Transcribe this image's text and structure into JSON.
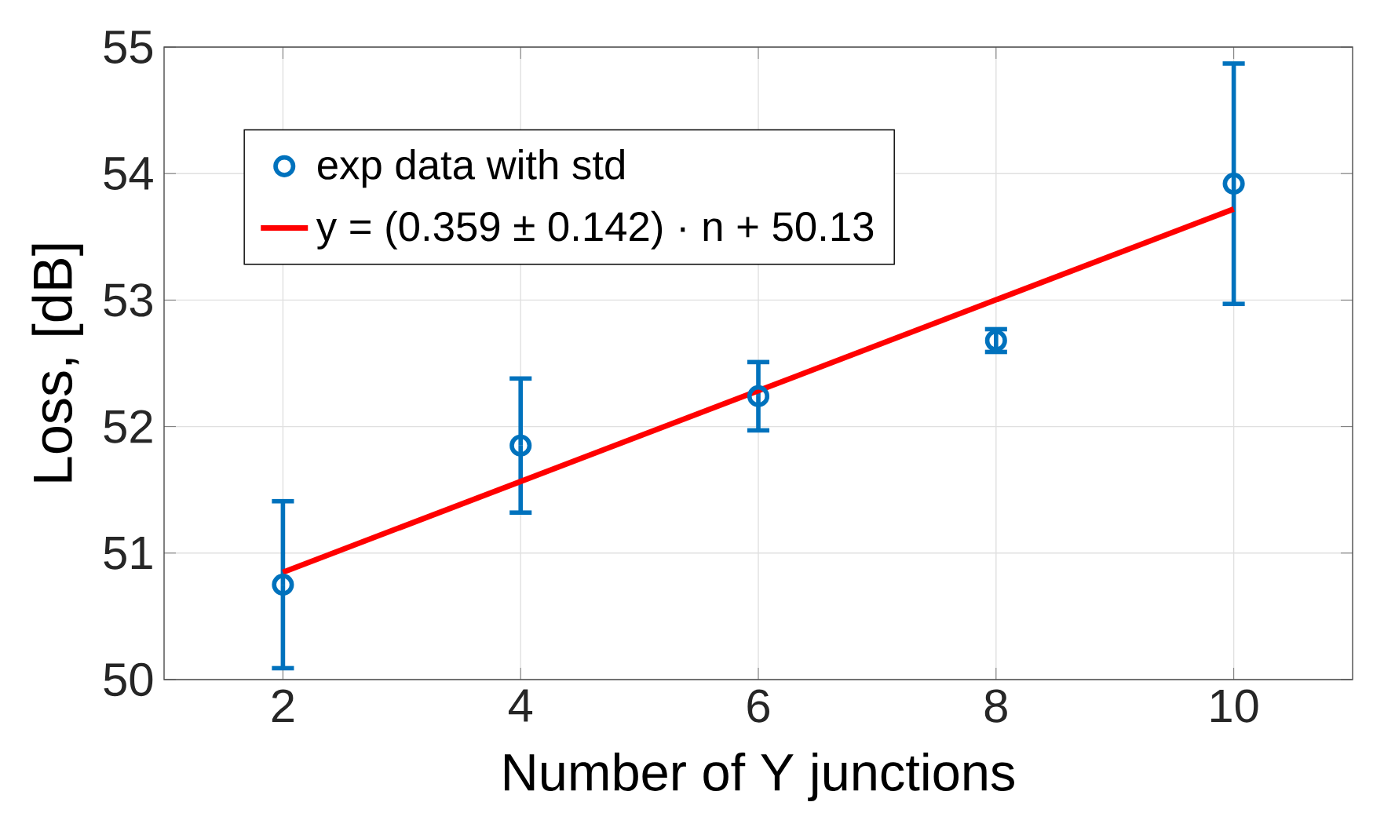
{
  "chart_data": {
    "type": "scatter",
    "xlabel": "Number of Y junctions",
    "ylabel": "Loss, [dB]",
    "xlim": [
      1,
      11
    ],
    "xticks": [
      2,
      4,
      6,
      8,
      10
    ],
    "ylim": [
      50,
      55
    ],
    "yticks": [
      50,
      51,
      52,
      53,
      54,
      55
    ],
    "grid": true,
    "legend": "top left",
    "series": [
      {
        "name": "exp data with std",
        "color": "#0072bd",
        "marker": "circle",
        "x": [
          2,
          4,
          6,
          8,
          10
        ],
        "values": [
          50.75,
          51.85,
          52.24,
          52.68,
          53.92
        ],
        "errors": [
          0.66,
          0.53,
          0.27,
          0.09,
          0.95
        ]
      },
      {
        "name": "y = (0.359 ± 0.142) · n + 50.13",
        "type": "line",
        "color": "#ff0000",
        "line_style": "solid",
        "x": [
          2,
          10
        ],
        "values": [
          50.848,
          53.72
        ]
      }
    ]
  }
}
